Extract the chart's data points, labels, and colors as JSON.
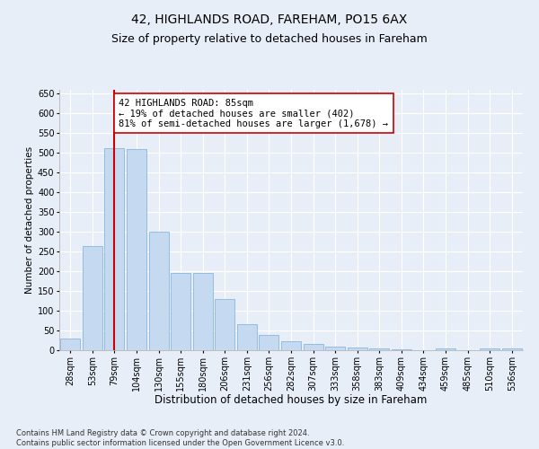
{
  "title1": "42, HIGHLANDS ROAD, FAREHAM, PO15 6AX",
  "title2": "Size of property relative to detached houses in Fareham",
  "xlabel": "Distribution of detached houses by size in Fareham",
  "ylabel": "Number of detached properties",
  "footnote": "Contains HM Land Registry data © Crown copyright and database right 2024.\nContains public sector information licensed under the Open Government Licence v3.0.",
  "categories": [
    "28sqm",
    "53sqm",
    "79sqm",
    "104sqm",
    "130sqm",
    "155sqm",
    "180sqm",
    "206sqm",
    "231sqm",
    "256sqm",
    "282sqm",
    "307sqm",
    "333sqm",
    "358sqm",
    "383sqm",
    "409sqm",
    "434sqm",
    "459sqm",
    "485sqm",
    "510sqm",
    "536sqm"
  ],
  "values": [
    30,
    263,
    512,
    509,
    301,
    196,
    195,
    130,
    65,
    38,
    22,
    15,
    10,
    6,
    5,
    3,
    0,
    5,
    0,
    5,
    5
  ],
  "bar_color": "#c5d9f0",
  "bar_edge_color": "#7aadd4",
  "vline_x": 2,
  "vline_color": "#cc0000",
  "annotation_text": "42 HIGHLANDS ROAD: 85sqm\n← 19% of detached houses are smaller (402)\n81% of semi-detached houses are larger (1,678) →",
  "annotation_box_color": "#ffffff",
  "annotation_box_edge": "#cc0000",
  "ylim": [
    0,
    660
  ],
  "yticks": [
    0,
    50,
    100,
    150,
    200,
    250,
    300,
    350,
    400,
    450,
    500,
    550,
    600,
    650
  ],
  "background_color": "#e8eef7",
  "plot_bg_color": "#e8eef7",
  "grid_color": "#ffffff",
  "title1_fontsize": 10,
  "title2_fontsize": 9,
  "xlabel_fontsize": 8.5,
  "ylabel_fontsize": 7.5,
  "annotation_fontsize": 7.5,
  "tick_fontsize": 7,
  "footnote_fontsize": 6
}
